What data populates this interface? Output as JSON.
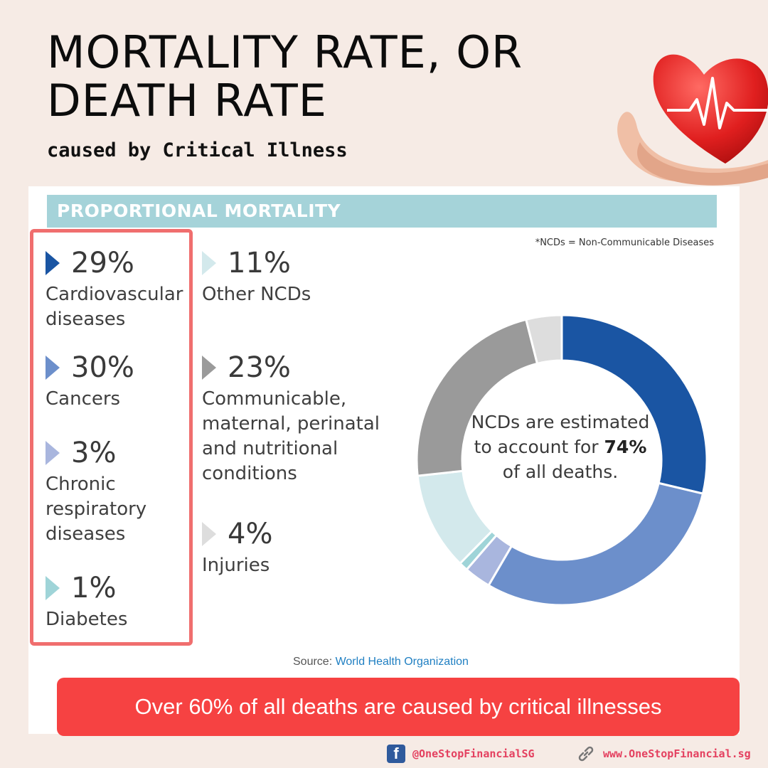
{
  "header": {
    "title": "MORTALITY RATE, OR DEATH RATE",
    "subtitle": "caused by Critical Illness"
  },
  "card": {
    "banner": "PROPORTIONAL MORTALITY",
    "note": "*NCDs = Non-Communicable  Diseases",
    "center_text_before": "NCDs are estimated to account for ",
    "center_text_bold": "74%",
    "center_text_after": " of all deaths.",
    "source_label": "Source:",
    "source_org": "World Health Organization"
  },
  "stats_left": [
    {
      "pct": "29%",
      "label": "Cardiovascular\ndiseases",
      "color": "#1a55a3"
    },
    {
      "pct": "30%",
      "label": "Cancers",
      "color": "#6c8fcb"
    },
    {
      "pct": "3%",
      "label": "Chronic\nrespiratory\ndiseases",
      "color": "#a9b6de"
    },
    {
      "pct": "1%",
      "label": "Diabetes",
      "color": "#9fd4d8"
    }
  ],
  "stats_right": [
    {
      "pct": "11%",
      "label": "Other NCDs",
      "color": "#d3e9ec"
    },
    {
      "pct": "23%",
      "label": "Communicable,\nmaternal, perinatal\nand nutritional\nconditions",
      "color": "#9a9a9a"
    },
    {
      "pct": "4%",
      "label": "Injuries",
      "color": "#dddddd"
    }
  ],
  "chart_data": {
    "type": "pie",
    "title": "PROPORTIONAL MORTALITY",
    "series": [
      {
        "name": "Cardiovascular diseases",
        "value": 29,
        "color": "#1a55a3"
      },
      {
        "name": "Cancers",
        "value": 30,
        "color": "#6c8fcb"
      },
      {
        "name": "Chronic respiratory diseases",
        "value": 3,
        "color": "#a9b6de"
      },
      {
        "name": "Diabetes",
        "value": 1,
        "color": "#9fd4d8"
      },
      {
        "name": "Other NCDs",
        "value": 11,
        "color": "#d3e9ec"
      },
      {
        "name": "Communicable, maternal, perinatal and nutritional conditions",
        "value": 23,
        "color": "#9a9a9a"
      },
      {
        "name": "Injuries",
        "value": 4,
        "color": "#dddddd"
      }
    ],
    "donut": true
  },
  "callout": {
    "text": "Over 60% of all deaths are caused by critical illnesses",
    "color": "#f64242"
  },
  "footer": {
    "facebook": "@OneStopFinancialSG",
    "website": "www.OneStopFinancial.sg",
    "facebook_icon": "facebook-icon",
    "link_icon": "link-icon"
  }
}
